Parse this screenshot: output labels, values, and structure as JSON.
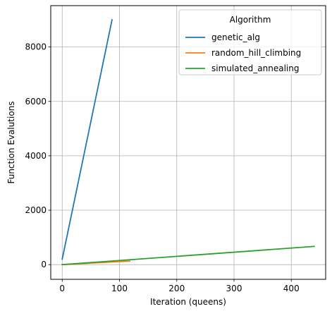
{
  "chart_data": {
    "type": "line",
    "title": "",
    "xlabel": "Iteration (queens)",
    "ylabel": "Function Evalutions",
    "xlim": [
      -20,
      460
    ],
    "ylim": [
      -540,
      9520
    ],
    "xticks": [
      0,
      100,
      200,
      300,
      400
    ],
    "yticks": [
      0,
      2000,
      4000,
      6000,
      8000
    ],
    "xtick_labels": [
      "0",
      "100",
      "200",
      "300",
      "400"
    ],
    "ytick_labels": [
      "0",
      "2000",
      "4000",
      "6000",
      "8000"
    ],
    "grid": true,
    "legend": {
      "title": "Algorithm",
      "placement": "top-right"
    },
    "series": [
      {
        "name": "genetic_alg",
        "color": "#1f77b4",
        "x": [
          0,
          87
        ],
        "y": [
          200,
          9000
        ]
      },
      {
        "name": "random_hill_climbing",
        "color": "#ff7f0e",
        "x": [
          0,
          118
        ],
        "y": [
          0,
          130
        ]
      },
      {
        "name": "simulated_annealing",
        "color": "#2ca02c",
        "x": [
          0,
          440
        ],
        "y": [
          0,
          670
        ]
      }
    ]
  }
}
